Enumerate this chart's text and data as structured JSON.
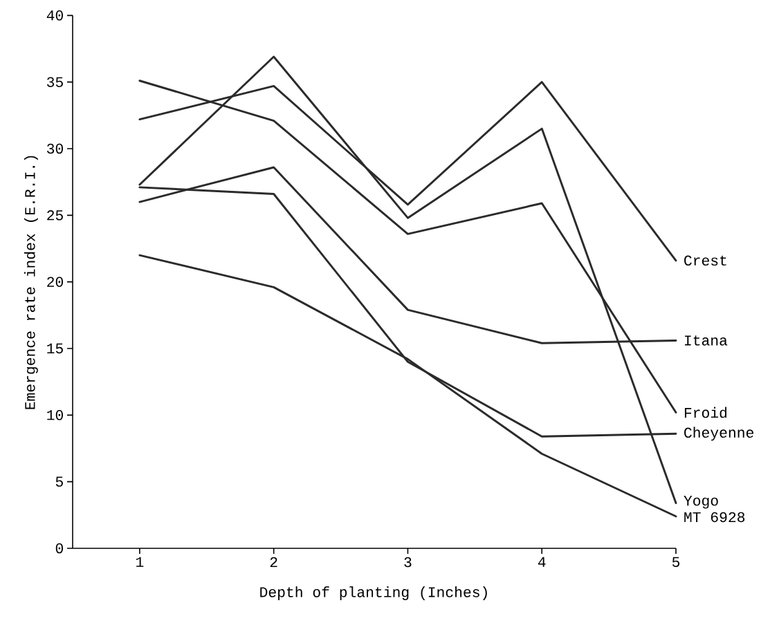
{
  "chart_data": {
    "type": "line",
    "xlabel": "Depth of planting (Inches)",
    "ylabel": "Emergence rate index (E.R.I.)",
    "x": [
      1,
      2,
      3,
      4,
      5
    ],
    "xlim": [
      0.5,
      5
    ],
    "xticks": [
      1,
      2,
      3,
      4,
      5
    ],
    "ylim": [
      0,
      40
    ],
    "yticks": [
      0,
      5,
      10,
      15,
      20,
      25,
      30,
      35,
      40
    ],
    "grid": false,
    "legend": false,
    "marker": "none",
    "line_style": "solid",
    "series": [
      {
        "name": "Crest",
        "color": "#2b2b2b",
        "values": [
          32.2,
          34.7,
          25.8,
          35.0,
          21.6
        ]
      },
      {
        "name": "Itana",
        "color": "#2b2b2b",
        "values": [
          26.0,
          28.6,
          17.9,
          15.4,
          15.6
        ]
      },
      {
        "name": "Froid",
        "color": "#2b2b2b",
        "values": [
          35.1,
          32.1,
          23.6,
          25.9,
          10.2
        ]
      },
      {
        "name": "Cheyenne",
        "color": "#2b2b2b",
        "values": [
          27.1,
          26.6,
          14.0,
          8.4,
          8.6
        ]
      },
      {
        "name": "Yogo",
        "color": "#2b2b2b",
        "values": [
          27.3,
          36.9,
          24.8,
          31.5,
          3.4
        ]
      },
      {
        "name": "MT 6928",
        "color": "#2b2b2b",
        "values": [
          22.0,
          19.6,
          14.2,
          7.1,
          2.4
        ]
      }
    ]
  }
}
